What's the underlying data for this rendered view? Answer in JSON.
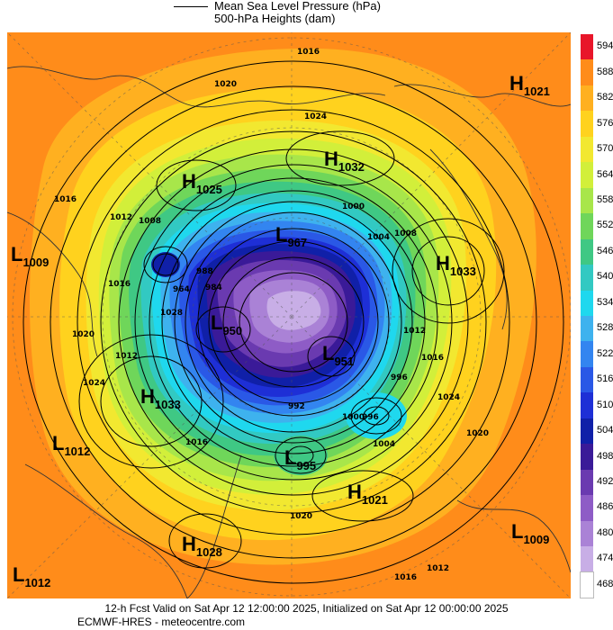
{
  "legend": {
    "line1": "Mean Sea Level Pressure (hPa)",
    "line2": "500-hPa Heights (dam)"
  },
  "colorbar": {
    "labels": [
      "594",
      "588",
      "582",
      "576",
      "570",
      "564",
      "558",
      "552",
      "546",
      "540",
      "534",
      "528",
      "522",
      "516",
      "510",
      "504",
      "498",
      "492",
      "486",
      "480",
      "474",
      "468"
    ],
    "colors": [
      "#e8162a",
      "#ff8c1a",
      "#ffb020",
      "#ffd21e",
      "#f2e830",
      "#d2ef3a",
      "#a8e64a",
      "#6fd65a",
      "#3fc884",
      "#32c9c2",
      "#1fd8ee",
      "#3eb2ee",
      "#3385f0",
      "#2a58e6",
      "#1e2fd6",
      "#1020a8",
      "#3a1a98",
      "#6a3ab0",
      "#8e5cc6",
      "#aa82d6",
      "#c8aee6",
      "#ffffff"
    ]
  },
  "pressure_systems": [
    {
      "letter": "H",
      "value": "1021"
    },
    {
      "letter": "H",
      "value": "1032"
    },
    {
      "letter": "H",
      "value": "1025"
    },
    {
      "letter": "L",
      "value": "967"
    },
    {
      "letter": "L",
      "value": "1009"
    },
    {
      "letter": "H",
      "value": "1033"
    },
    {
      "letter": "L",
      "value": "950"
    },
    {
      "letter": "L",
      "value": "951"
    },
    {
      "letter": "H",
      "value": "1033"
    },
    {
      "letter": "L",
      "value": "1012"
    },
    {
      "letter": "L",
      "value": "995"
    },
    {
      "letter": "H",
      "value": "1021"
    },
    {
      "letter": "L",
      "value": "1009"
    },
    {
      "letter": "H",
      "value": "1028"
    },
    {
      "letter": "L",
      "value": "1012"
    }
  ],
  "isobar_labels": [
    "1016",
    "1020",
    "1024",
    "1016",
    "1012",
    "1008",
    "1004",
    "1000",
    "996",
    "992",
    "988",
    "984",
    "964",
    "1028",
    "1016",
    "1020",
    "1024",
    "1012",
    "1016",
    "1020",
    "1024",
    "1016",
    "1012",
    "1008",
    "1004",
    "996",
    "1000",
    "1020",
    "1016",
    "1012"
  ],
  "footer": {
    "line1": "12-h Fcst Valid on Sat Apr 12 12:00:00 2025, Initialized on Sat Apr 12 00:00:00 2025",
    "line2": "ECMWF-HRES  - meteocentre.com"
  }
}
